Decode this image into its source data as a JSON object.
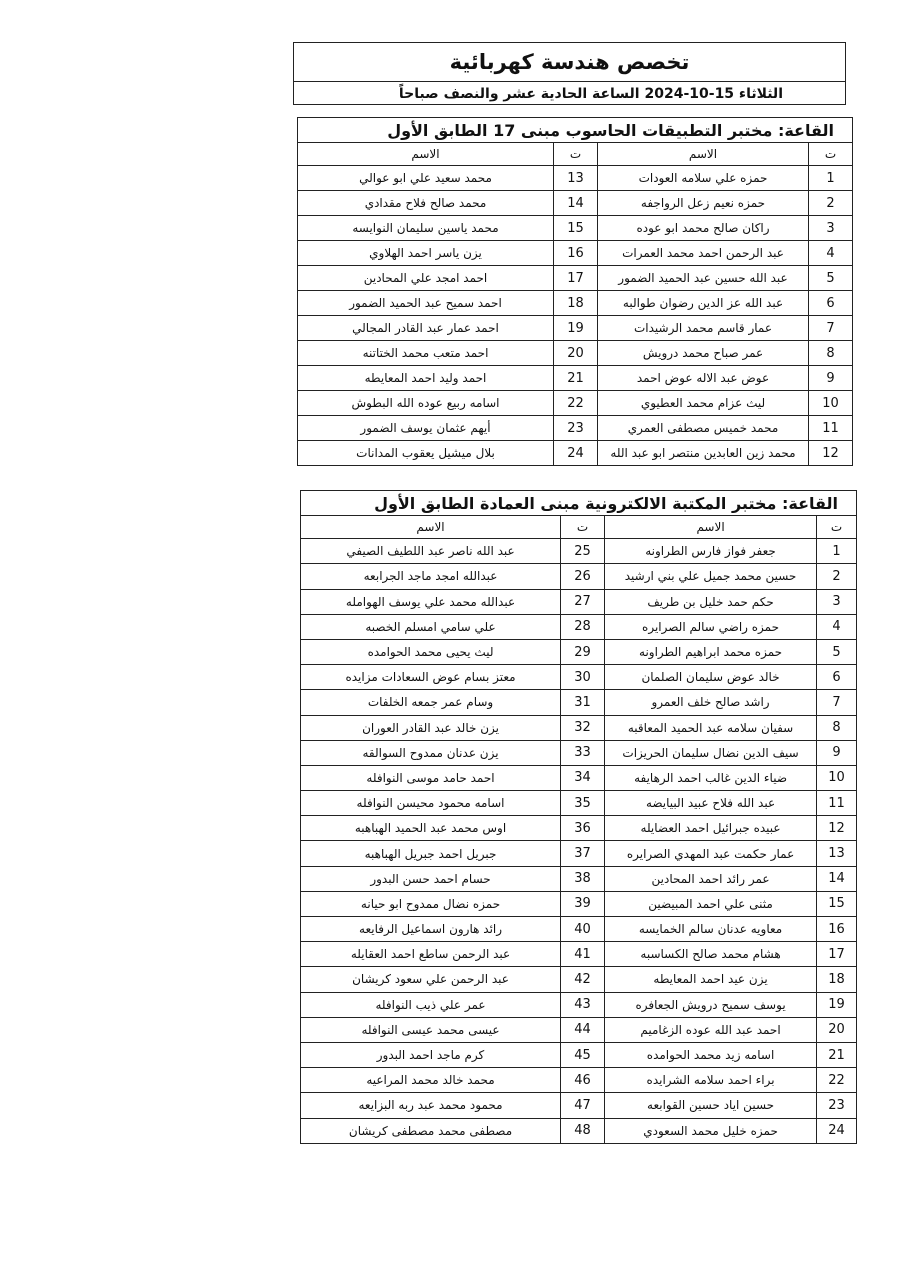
{
  "header": {
    "title": "تخصص هندسة كهربائية",
    "subtitle": "الثلاثاء 15-10-2024   الساعة الحادية عشر والنصف صباحاً"
  },
  "tables": [
    {
      "caption": "القاعة: مختبر التطبيقات الحاسوب مبنى 17 الطابق الأول",
      "headers": [
        "ت",
        "الاسم",
        "ت",
        "الاسم"
      ],
      "rows": [
        [
          1,
          "حمزه علي سلامه العودات",
          13,
          "محمد سعيد علي ابو عوالي"
        ],
        [
          2,
          "حمزه نعيم زعل الرواجفه",
          14,
          "محمد صالح فلاح مقدادي"
        ],
        [
          3,
          "راكان صالح محمد ابو عوده",
          15,
          "محمد ياسين سليمان النوايسه"
        ],
        [
          4,
          "عبد الرحمن احمد محمد العمرات",
          16,
          "يزن ياسر احمد الهلاوي"
        ],
        [
          5,
          "عبد الله حسين عبد الحميد الضمور",
          17,
          "احمد امجد علي المحادين"
        ],
        [
          6,
          "عبد الله عز الدين رضوان طوالبه",
          18,
          "احمد سميح عبد الحميد الضمور"
        ],
        [
          7,
          "عمار قاسم محمد الرشيدات",
          19,
          "احمد عمار عبد القادر المجالي"
        ],
        [
          8,
          "عمر صباح محمد درويش",
          20,
          "احمد متعب محمد الختاتنه"
        ],
        [
          9,
          "عوض عبد الاله عوض احمد",
          21,
          "احمد وليد احمد المعايطه"
        ],
        [
          10,
          "ليث عزام محمد العطيوي",
          22,
          "اسامه ربيع عوده الله البطوش"
        ],
        [
          11,
          "محمد خميس مصطفى العمري",
          23,
          "أيهم عثمان يوسف الضمور"
        ],
        [
          12,
          "محمد زين العابدين منتصر ابو عبد الله",
          24,
          "بلال ميشيل يعقوب المدانات"
        ]
      ]
    },
    {
      "caption": "القاعة: مختبر المكتبة الالكترونية مبنى العمادة الطابق الأول",
      "headers": [
        "ت",
        "الاسم",
        "ت",
        "الاسم"
      ],
      "rows": [
        [
          1,
          "جعفر فواز فارس الطراونه",
          25,
          "عبد الله ناصر عبد اللطيف الصيفي"
        ],
        [
          2,
          "حسين محمد جميل علي بني ارشيد",
          26,
          "عبدالله امجد ماجد الجرابعه"
        ],
        [
          3,
          "حكم حمد خليل بن طريف",
          27,
          "عبدالله محمد علي يوسف الهوامله"
        ],
        [
          4,
          "حمزه راضي سالم الصرايره",
          28,
          "علي سامي امسلم الخصبه"
        ],
        [
          5,
          "حمزه محمد ابراهيم الطراونه",
          29,
          "ليث يحيى محمد الحوامده"
        ],
        [
          6,
          "خالد عوض سليمان الصلمان",
          30,
          "معتز بسام عوض السعادات مزايده"
        ],
        [
          7,
          "راشد صالح خلف العمرو",
          31,
          "وسام عمر جمعه الخلفات"
        ],
        [
          8,
          "سفيان سلامه عبد الحميد المعاقبه",
          32,
          "يزن خالد عبد القادر العوران"
        ],
        [
          9,
          "سيف الدين نضال سليمان الحريزات",
          33,
          "يزن عدنان ممدوح السوالقه"
        ],
        [
          10,
          "ضياء الدين غالب احمد الرهايفه",
          34,
          "احمد حامد موسى النوافله"
        ],
        [
          11,
          "عبد الله فلاح عبيد البيايضه",
          35,
          "اسامه محمود محيسن النوافله"
        ],
        [
          12,
          "عبيده جبرائيل احمد العضايله",
          36,
          "اوس محمد عبد الحميد الهباهبه"
        ],
        [
          13,
          "عمار حكمت عبد المهدي الصرايره",
          37,
          "جبريل احمد جبريل الهباهبه"
        ],
        [
          14,
          "عمر رائد احمد المحادين",
          38,
          "حسام احمد حسن البدور"
        ],
        [
          15,
          "مثنى علي احمد المبيضين",
          39,
          "حمزه نضال ممدوح ابو حيانه"
        ],
        [
          16,
          "معاويه عدنان سالم الخمايسه",
          40,
          "رائد هارون اسماعيل الرفايعه"
        ],
        [
          17,
          "هشام محمد صالح الكساسبه",
          41,
          "عبد الرحمن ساطع احمد العقايله"
        ],
        [
          18,
          "يزن عيد احمد المعايطه",
          42,
          "عبد الرحمن علي سعود كريشان"
        ],
        [
          19,
          "يوسف سميح درويش الجعافره",
          43,
          "عمر علي ذيب النوافله"
        ],
        [
          20,
          "احمد عبد الله عوده الزغاميم",
          44,
          "عيسى محمد عيسى النوافله"
        ],
        [
          21,
          "اسامه زيد محمد الحوامده",
          45,
          "كرم ماجد احمد البدور"
        ],
        [
          22,
          "براء احمد سلامه الشرايده",
          46,
          "محمد خالد محمد المراعيه"
        ],
        [
          23,
          "حسين اياد حسين القوابعه",
          47,
          "محمود محمد عبد ربه البزايعه"
        ],
        [
          24,
          "حمزه خليل محمد السعودي",
          48,
          "مصطفى محمد مصطفى كريشان"
        ]
      ]
    }
  ]
}
